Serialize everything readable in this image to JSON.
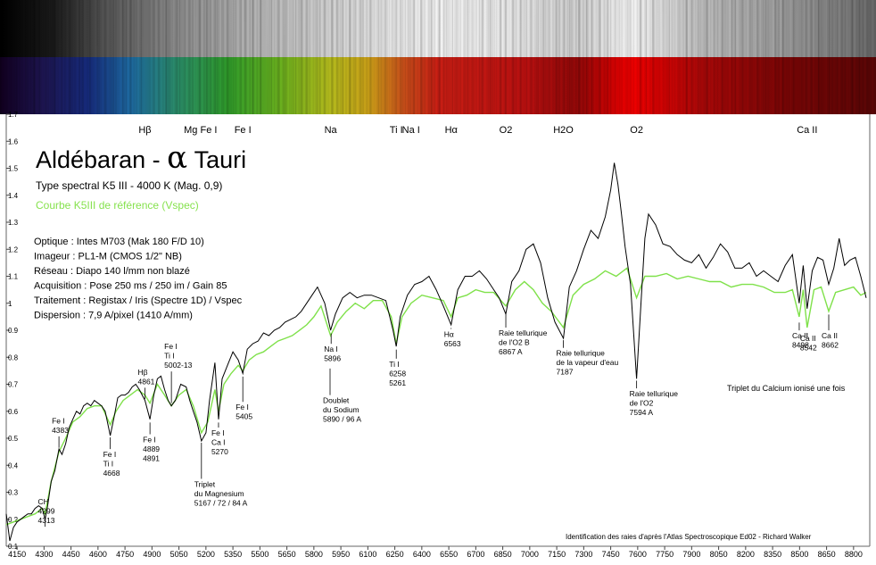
{
  "header": {
    "title_main": "Aldébaran - ",
    "title_alpha": "α",
    "title_rest": " Tauri",
    "spectral_type": "Type spectral K5 III - 4000 K (Mag. 0,9)",
    "reference_curve": "Courbe K5III de référence (Vspec)",
    "setup": [
      "Optique : Intes M703 (Mak 180 F/D 10)",
      "Imageur : PL1-M (CMOS 1/2\" NB)",
      "Réseau : Diapo 140 l/mm non blazé",
      "Acquisition : Pose 250 ms / 250 im / Gain 85",
      "Traitement : Registax / Iris (Spectre 1D) / Vspec",
      "Dispersion : 7,9 A/pixel (1410 A/mm)"
    ]
  },
  "colors": {
    "observed": "#000000",
    "reference": "#7fe14a",
    "reference_text": "#86e24e"
  },
  "chart_data": {
    "type": "line",
    "title": "",
    "xlabel": "",
    "ylabel": "",
    "xlim": [
      4090,
      8890
    ],
    "ylim": [
      0.1,
      1.7
    ],
    "x_ticks": [
      4150,
      4300,
      4450,
      4600,
      4750,
      4900,
      5050,
      5200,
      5350,
      5500,
      5650,
      5800,
      5950,
      6100,
      6250,
      6400,
      6550,
      6700,
      6850,
      7000,
      7150,
      7300,
      7450,
      7600,
      7750,
      7900,
      8050,
      8200,
      8350,
      8500,
      8650,
      8800
    ],
    "y_ticks": [
      0.1,
      0.2,
      0.3,
      0.4,
      0.5,
      0.6,
      0.7,
      0.8,
      0.9,
      1,
      1.1,
      1.2,
      1.3,
      1.4,
      1.5,
      1.6,
      1.7
    ],
    "y_tick_labels": [
      "0.1",
      "0.2",
      "0.3",
      "0.4",
      "0.5",
      "0.6",
      "0.7",
      "0.8",
      "0.9",
      "1",
      "1.1",
      "1.2",
      "1.3",
      "1.4",
      "1.5",
      "1.6",
      "1.7"
    ],
    "grid": false,
    "top_labels": [
      {
        "text": "Hβ",
        "x": 4861
      },
      {
        "text": "Mg Fe I",
        "x": 5170
      },
      {
        "text": "Fe I",
        "x": 5405
      },
      {
        "text": "Na",
        "x": 5893
      },
      {
        "text": "Ti I",
        "x": 6258
      },
      {
        "text": "Na I",
        "x": 6340
      },
      {
        "text": "Hα",
        "x": 6563
      },
      {
        "text": "O2",
        "x": 6867
      },
      {
        "text": "H2O",
        "x": 7187
      },
      {
        "text": "O2",
        "x": 7594
      },
      {
        "text": "Ca II",
        "x": 8542
      }
    ],
    "annotations": [
      {
        "lines": [
          "Fe I",
          "4383"
        ],
        "x": 4383,
        "tip": 0.455,
        "label_y": 0.555
      },
      {
        "lines": [
          "CH",
          "4299",
          "4313"
        ],
        "x": 4306,
        "tip": 0.2,
        "label_y": 0.255
      },
      {
        "lines": [
          "Hβ",
          "4861"
        ],
        "x": 4861,
        "tip": 0.635,
        "label_y": 0.735
      },
      {
        "lines": [
          "Fe I",
          "Ti I",
          "4668"
        ],
        "x": 4668,
        "tip": 0.51,
        "label_y": 0.43
      },
      {
        "lines": [
          "Fe I",
          "4889",
          "4891"
        ],
        "x": 4889,
        "tip": 0.565,
        "label_y": 0.485
      },
      {
        "lines": [
          "Fe I",
          "Ti I",
          "5002-13"
        ],
        "x": 5008,
        "tip": 0.62,
        "label_y": 0.83
      },
      {
        "lines": [
          "Triplet",
          "du Magnesium",
          "5167 / 72 / 84 A"
        ],
        "x": 5175,
        "tip": 0.49,
        "label_y": 0.32
      },
      {
        "lines": [
          "Fe I",
          "Ca I",
          "5270"
        ],
        "x": 5270,
        "tip": 0.565,
        "label_y": 0.51
      },
      {
        "lines": [
          "Fe I",
          "5405"
        ],
        "x": 5405,
        "tip": 0.735,
        "label_y": 0.605
      },
      {
        "lines": [
          "Na I",
          "5896"
        ],
        "x": 5896,
        "tip": 0.895,
        "label_y": 0.82
      },
      {
        "lines": [
          "Doublet",
          "du Sodium",
          "5890 / 96 A"
        ],
        "x": 5890,
        "tip": 0.765,
        "label_y": 0.63
      },
      {
        "lines": [
          "Ti I",
          "6258",
          "5261"
        ],
        "x": 6258,
        "tip": 0.835,
        "label_y": 0.765
      },
      {
        "lines": [
          "Hα",
          "6563"
        ],
        "x": 6563,
        "tip": 0.915,
        "label_y": 0.875
      },
      {
        "lines": [
          "Raie tellurique",
          "de l'O2 B",
          "6867 A"
        ],
        "x": 6867,
        "tip": 0.965,
        "label_y": 0.88
      },
      {
        "lines": [
          "Raie tellurique",
          "de la vapeur d'eau",
          "7187"
        ],
        "x": 7187,
        "tip": 0.87,
        "label_y": 0.805
      },
      {
        "lines": [
          "Raie tellurique",
          "de l'O2",
          "7594 A"
        ],
        "x": 7594,
        "tip": 0.72,
        "label_y": 0.655
      },
      {
        "lines": [
          "Ca II",
          "8498"
        ],
        "x": 8498,
        "tip": 0.935,
        "label_y": 0.87
      },
      {
        "lines": [
          "Ca II",
          "8542"
        ],
        "x": 8542,
        "tip": 0.885,
        "label_y": 0.86
      },
      {
        "lines": [
          "Ca II",
          "8662"
        ],
        "x": 8662,
        "tip": 0.965,
        "label_y": 0.87
      }
    ],
    "note_calcium": "Triplet du Calcium ionisé une fois",
    "source_note": "Identification des raies d'après l'Atlas Spectroscopique Ed02 - Richard Walker",
    "series": [
      {
        "x": [
          4090,
          4110,
          4130,
          4150,
          4170,
          4190,
          4210,
          4230,
          4250,
          4270,
          4290,
          4306,
          4320,
          4340,
          4360,
          4383,
          4400,
          4420,
          4440,
          4460,
          4480,
          4500,
          4520,
          4540,
          4560,
          4580,
          4600,
          4620,
          4640,
          4668,
          4690,
          4710,
          4730,
          4750,
          4770,
          4790,
          4810,
          4830,
          4861,
          4889,
          4910,
          4930,
          4950,
          4970,
          4990,
          5008,
          5030,
          5060,
          5090,
          5110,
          5130,
          5150,
          5175,
          5200,
          5220,
          5250,
          5270,
          5290,
          5320,
          5350,
          5380,
          5405,
          5430,
          5460,
          5490,
          5520,
          5550,
          5580,
          5610,
          5640,
          5670,
          5700,
          5730,
          5760,
          5790,
          5820,
          5860,
          5893,
          5920,
          5960,
          6000,
          6040,
          6080,
          6120,
          6160,
          6200,
          6240,
          6258,
          6280,
          6320,
          6360,
          6400,
          6440,
          6480,
          6520,
          6563,
          6600,
          6640,
          6680,
          6720,
          6760,
          6800,
          6830,
          6867,
          6900,
          6940,
          6980,
          7020,
          7060,
          7100,
          7140,
          7187,
          7220,
          7260,
          7300,
          7340,
          7380,
          7420,
          7450,
          7470,
          7490,
          7510,
          7530,
          7560,
          7594,
          7620,
          7640,
          7660,
          7700,
          7740,
          7780,
          7820,
          7860,
          7900,
          7940,
          7980,
          8020,
          8060,
          8100,
          8140,
          8180,
          8220,
          8260,
          8300,
          8340,
          8380,
          8420,
          8460,
          8498,
          8520,
          8542,
          8570,
          8600,
          8630,
          8662,
          8690,
          8720,
          8750,
          8780,
          8810,
          8840,
          8870
        ],
        "values": [
          0.22,
          0.12,
          0.17,
          0.19,
          0.2,
          0.21,
          0.22,
          0.22,
          0.24,
          0.25,
          0.24,
          0.2,
          0.25,
          0.34,
          0.38,
          0.46,
          0.44,
          0.48,
          0.54,
          0.57,
          0.6,
          0.59,
          0.62,
          0.63,
          0.62,
          0.64,
          0.63,
          0.62,
          0.6,
          0.51,
          0.58,
          0.65,
          0.66,
          0.66,
          0.67,
          0.69,
          0.7,
          0.68,
          0.64,
          0.57,
          0.66,
          0.72,
          0.73,
          0.68,
          0.64,
          0.62,
          0.64,
          0.7,
          0.69,
          0.64,
          0.6,
          0.56,
          0.49,
          0.52,
          0.64,
          0.78,
          0.57,
          0.72,
          0.77,
          0.82,
          0.79,
          0.74,
          0.83,
          0.85,
          0.86,
          0.89,
          0.88,
          0.9,
          0.91,
          0.93,
          0.94,
          0.95,
          0.97,
          1.0,
          1.03,
          1.06,
          1.0,
          0.9,
          0.96,
          1.02,
          1.04,
          1.02,
          1.03,
          1.03,
          1.02,
          1.01,
          0.9,
          0.84,
          0.95,
          1.03,
          1.07,
          1.08,
          1.1,
          1.05,
          0.99,
          0.92,
          1.05,
          1.1,
          1.1,
          1.12,
          1.09,
          1.05,
          1.02,
          0.96,
          1.08,
          1.12,
          1.2,
          1.22,
          1.15,
          1.02,
          0.93,
          0.87,
          1.06,
          1.12,
          1.2,
          1.27,
          1.24,
          1.32,
          1.42,
          1.52,
          1.44,
          1.33,
          1.21,
          1.07,
          0.72,
          1.02,
          1.24,
          1.33,
          1.29,
          1.22,
          1.21,
          1.18,
          1.16,
          1.15,
          1.18,
          1.13,
          1.17,
          1.22,
          1.19,
          1.13,
          1.13,
          1.15,
          1.1,
          1.12,
          1.1,
          1.08,
          1.14,
          1.18,
          1.0,
          1.14,
          0.98,
          1.12,
          1.17,
          1.16,
          1.07,
          1.13,
          1.24,
          1.14,
          1.16,
          1.17,
          1.1,
          1.02
        ]
      },
      {
        "x": [
          4090,
          4130,
          4170,
          4210,
          4250,
          4290,
          4306,
          4340,
          4383,
          4420,
          4460,
          4500,
          4540,
          4580,
          4620,
          4668,
          4700,
          4740,
          4780,
          4820,
          4861,
          4889,
          4930,
          4970,
          5008,
          5050,
          5090,
          5130,
          5175,
          5210,
          5250,
          5270,
          5300,
          5340,
          5380,
          5405,
          5440,
          5480,
          5520,
          5560,
          5600,
          5640,
          5680,
          5720,
          5760,
          5800,
          5840,
          5893,
          5930,
          5980,
          6030,
          6080,
          6130,
          6180,
          6230,
          6258,
          6290,
          6340,
          6400,
          6460,
          6520,
          6563,
          6600,
          6650,
          6700,
          6750,
          6800,
          6867,
          6920,
          6970,
          7020,
          7070,
          7120,
          7187,
          7240,
          7300,
          7360,
          7420,
          7480,
          7540,
          7594,
          7640,
          7700,
          7760,
          7820,
          7880,
          7940,
          8000,
          8060,
          8120,
          8180,
          8240,
          8300,
          8360,
          8420,
          8460,
          8498,
          8520,
          8542,
          8580,
          8620,
          8662,
          8700,
          8750,
          8800,
          8840,
          8870
        ],
        "values": [
          0.18,
          0.19,
          0.2,
          0.21,
          0.22,
          0.24,
          0.22,
          0.34,
          0.45,
          0.5,
          0.56,
          0.58,
          0.61,
          0.62,
          0.62,
          0.55,
          0.6,
          0.64,
          0.66,
          0.68,
          0.66,
          0.63,
          0.7,
          0.66,
          0.62,
          0.66,
          0.68,
          0.62,
          0.52,
          0.56,
          0.68,
          0.6,
          0.7,
          0.74,
          0.77,
          0.75,
          0.79,
          0.81,
          0.82,
          0.84,
          0.86,
          0.87,
          0.88,
          0.9,
          0.92,
          0.95,
          0.99,
          0.88,
          0.93,
          0.97,
          1.0,
          0.98,
          1.01,
          1.01,
          0.95,
          0.85,
          0.95,
          1.0,
          1.03,
          1.02,
          1.01,
          0.95,
          1.02,
          1.03,
          1.05,
          1.04,
          1.04,
          0.99,
          1.05,
          1.08,
          1.05,
          1.0,
          0.97,
          0.91,
          1.03,
          1.07,
          1.09,
          1.12,
          1.1,
          1.13,
          1.02,
          1.1,
          1.1,
          1.11,
          1.09,
          1.1,
          1.09,
          1.08,
          1.08,
          1.06,
          1.07,
          1.07,
          1.06,
          1.04,
          1.04,
          1.05,
          0.95,
          1.05,
          0.91,
          1.05,
          1.06,
          0.97,
          1.04,
          1.05,
          1.06,
          1.03,
          1.04
        ]
      }
    ]
  }
}
